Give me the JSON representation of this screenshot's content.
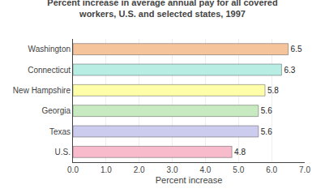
{
  "chart_data": {
    "type": "bar",
    "orientation": "horizontal",
    "title": "Percent increase in average annual pay for all covered\nworkers, U.S. and selected states, 1997",
    "categories": [
      "Washington",
      "Connecticut",
      "New Hampshire",
      "Georgia",
      "Texas",
      "U.S."
    ],
    "values": [
      6.5,
      6.3,
      5.8,
      5.6,
      5.6,
      4.8
    ],
    "colors": [
      "#F5C49A",
      "#B8EDE4",
      "#FFFFAA",
      "#C8EAC0",
      "#CCCCEE",
      "#F8BBCC"
    ],
    "xlabel": "Percent increase",
    "xlim": [
      0,
      7.0
    ],
    "xticks": [
      {
        "value": 0,
        "label": "0.0"
      },
      {
        "value": 1,
        "label": "1.0"
      },
      {
        "value": 2,
        "label": "2.0"
      },
      {
        "value": 3,
        "label": "3.0"
      },
      {
        "value": 4,
        "label": "4.0"
      },
      {
        "value": 5,
        "label": "5.0"
      },
      {
        "value": 6,
        "label": "6.0"
      },
      {
        "value": 7,
        "label": "7.0"
      }
    ],
    "grid": true,
    "data_labels": true
  }
}
